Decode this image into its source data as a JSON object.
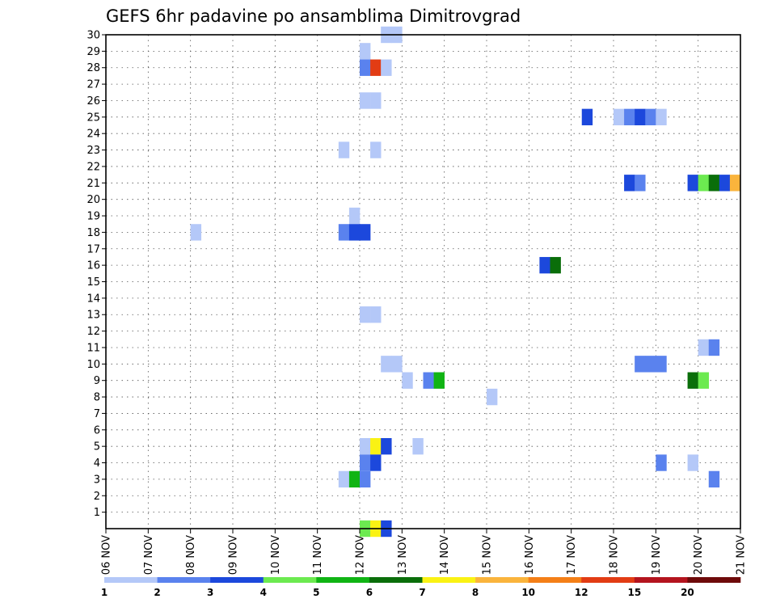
{
  "chart_data": {
    "type": "heatmap",
    "title": "GEFS 6hr padavine po ansamblima Dimitrovgrad",
    "xlabel": "",
    "ylabel": "",
    "x_tick_labels": [
      "06 NOV",
      "07 NOV",
      "08 NOV",
      "09 NOV",
      "10 NOV",
      "11 NOV",
      "12 NOV",
      "13 NOV",
      "14 NOV",
      "15 NOV",
      "16 NOV",
      "17 NOV",
      "18 NOV",
      "19 NOV",
      "20 NOV",
      "21 NOV"
    ],
    "x_range_days": [
      0,
      15
    ],
    "y_tick_labels": [
      "1",
      "2",
      "3",
      "4",
      "5",
      "6",
      "7",
      "8",
      "9",
      "10",
      "11",
      "12",
      "13",
      "14",
      "15",
      "16",
      "17",
      "18",
      "19",
      "20",
      "21",
      "22",
      "23",
      "24",
      "25",
      "26",
      "27",
      "28",
      "29",
      "30"
    ],
    "y_range_members": [
      0,
      30
    ],
    "grid": "dotted",
    "colorbar": {
      "tick_labels": [
        "1",
        "2",
        "3",
        "4",
        "5",
        "6",
        "7",
        "8",
        "10",
        "12",
        "15",
        "20"
      ],
      "colors": [
        "#b4c8f8",
        "#5a82ee",
        "#1c48dc",
        "#6cea50",
        "#10b414",
        "#0a6e0a",
        "#faf214",
        "#fab43c",
        "#f47f17",
        "#e23c14",
        "#b4141e",
        "#6e0a0a"
      ]
    },
    "cells": [
      {
        "member": 30,
        "day": 6.5,
        "level": 1
      },
      {
        "member": 30,
        "day": 6.75,
        "level": 1
      },
      {
        "member": 29,
        "day": 6.0,
        "level": 1
      },
      {
        "member": 28,
        "day": 6.0,
        "level": 2
      },
      {
        "member": 28,
        "day": 6.25,
        "level": 10
      },
      {
        "member": 28,
        "day": 6.5,
        "level": 1
      },
      {
        "member": 26,
        "day": 6.0,
        "level": 1
      },
      {
        "member": 26,
        "day": 6.25,
        "level": 1
      },
      {
        "member": 25,
        "day": 11.25,
        "level": 3
      },
      {
        "member": 25,
        "day": 12.0,
        "level": 1
      },
      {
        "member": 25,
        "day": 12.25,
        "level": 2
      },
      {
        "member": 25,
        "day": 12.5,
        "level": 3
      },
      {
        "member": 25,
        "day": 12.75,
        "level": 2
      },
      {
        "member": 25,
        "day": 13.0,
        "level": 1
      },
      {
        "member": 23,
        "day": 5.5,
        "level": 1
      },
      {
        "member": 23,
        "day": 6.25,
        "level": 1
      },
      {
        "member": 21,
        "day": 12.25,
        "level": 3
      },
      {
        "member": 21,
        "day": 12.5,
        "level": 2
      },
      {
        "member": 21,
        "day": 13.75,
        "level": 3
      },
      {
        "member": 21,
        "day": 14.0,
        "level": 4
      },
      {
        "member": 21,
        "day": 14.25,
        "level": 6
      },
      {
        "member": 21,
        "day": 14.5,
        "level": 3
      },
      {
        "member": 21,
        "day": 14.75,
        "level": 8
      },
      {
        "member": 19,
        "day": 5.75,
        "level": 1
      },
      {
        "member": 18,
        "day": 2.0,
        "level": 1
      },
      {
        "member": 18,
        "day": 5.5,
        "level": 2
      },
      {
        "member": 18,
        "day": 5.75,
        "level": 3
      },
      {
        "member": 18,
        "day": 6.0,
        "level": 3
      },
      {
        "member": 16,
        "day": 10.25,
        "level": 3
      },
      {
        "member": 16,
        "day": 10.5,
        "level": 6
      },
      {
        "member": 13,
        "day": 6.0,
        "level": 1
      },
      {
        "member": 13,
        "day": 6.25,
        "level": 1
      },
      {
        "member": 11,
        "day": 14.0,
        "level": 1
      },
      {
        "member": 11,
        "day": 14.25,
        "level": 2
      },
      {
        "member": 10,
        "day": 6.5,
        "level": 1
      },
      {
        "member": 10,
        "day": 6.75,
        "level": 1
      },
      {
        "member": 10,
        "day": 12.5,
        "level": 2
      },
      {
        "member": 10,
        "day": 12.75,
        "level": 2
      },
      {
        "member": 10,
        "day": 13.0,
        "level": 2
      },
      {
        "member": 9,
        "day": 7.0,
        "level": 1
      },
      {
        "member": 9,
        "day": 7.5,
        "level": 2
      },
      {
        "member": 9,
        "day": 7.75,
        "level": 5
      },
      {
        "member": 9,
        "day": 13.75,
        "level": 6
      },
      {
        "member": 9,
        "day": 14.0,
        "level": 4
      },
      {
        "member": 8,
        "day": 9.0,
        "level": 1
      },
      {
        "member": 5,
        "day": 6.0,
        "level": 1
      },
      {
        "member": 5,
        "day": 6.25,
        "level": 7
      },
      {
        "member": 5,
        "day": 6.5,
        "level": 3
      },
      {
        "member": 5,
        "day": 7.25,
        "level": 1
      },
      {
        "member": 4,
        "day": 6.0,
        "level": 2
      },
      {
        "member": 4,
        "day": 6.25,
        "level": 3
      },
      {
        "member": 4,
        "day": 13.0,
        "level": 2
      },
      {
        "member": 4,
        "day": 13.75,
        "level": 1
      },
      {
        "member": 3,
        "day": 5.5,
        "level": 1
      },
      {
        "member": 3,
        "day": 5.75,
        "level": 5
      },
      {
        "member": 3,
        "day": 6.0,
        "level": 2
      },
      {
        "member": 3,
        "day": 14.25,
        "level": 2
      },
      {
        "member": 0,
        "day": 6.0,
        "level": 4
      },
      {
        "member": 0,
        "day": 6.25,
        "level": 7
      },
      {
        "member": 0,
        "day": 6.5,
        "level": 3
      }
    ]
  }
}
